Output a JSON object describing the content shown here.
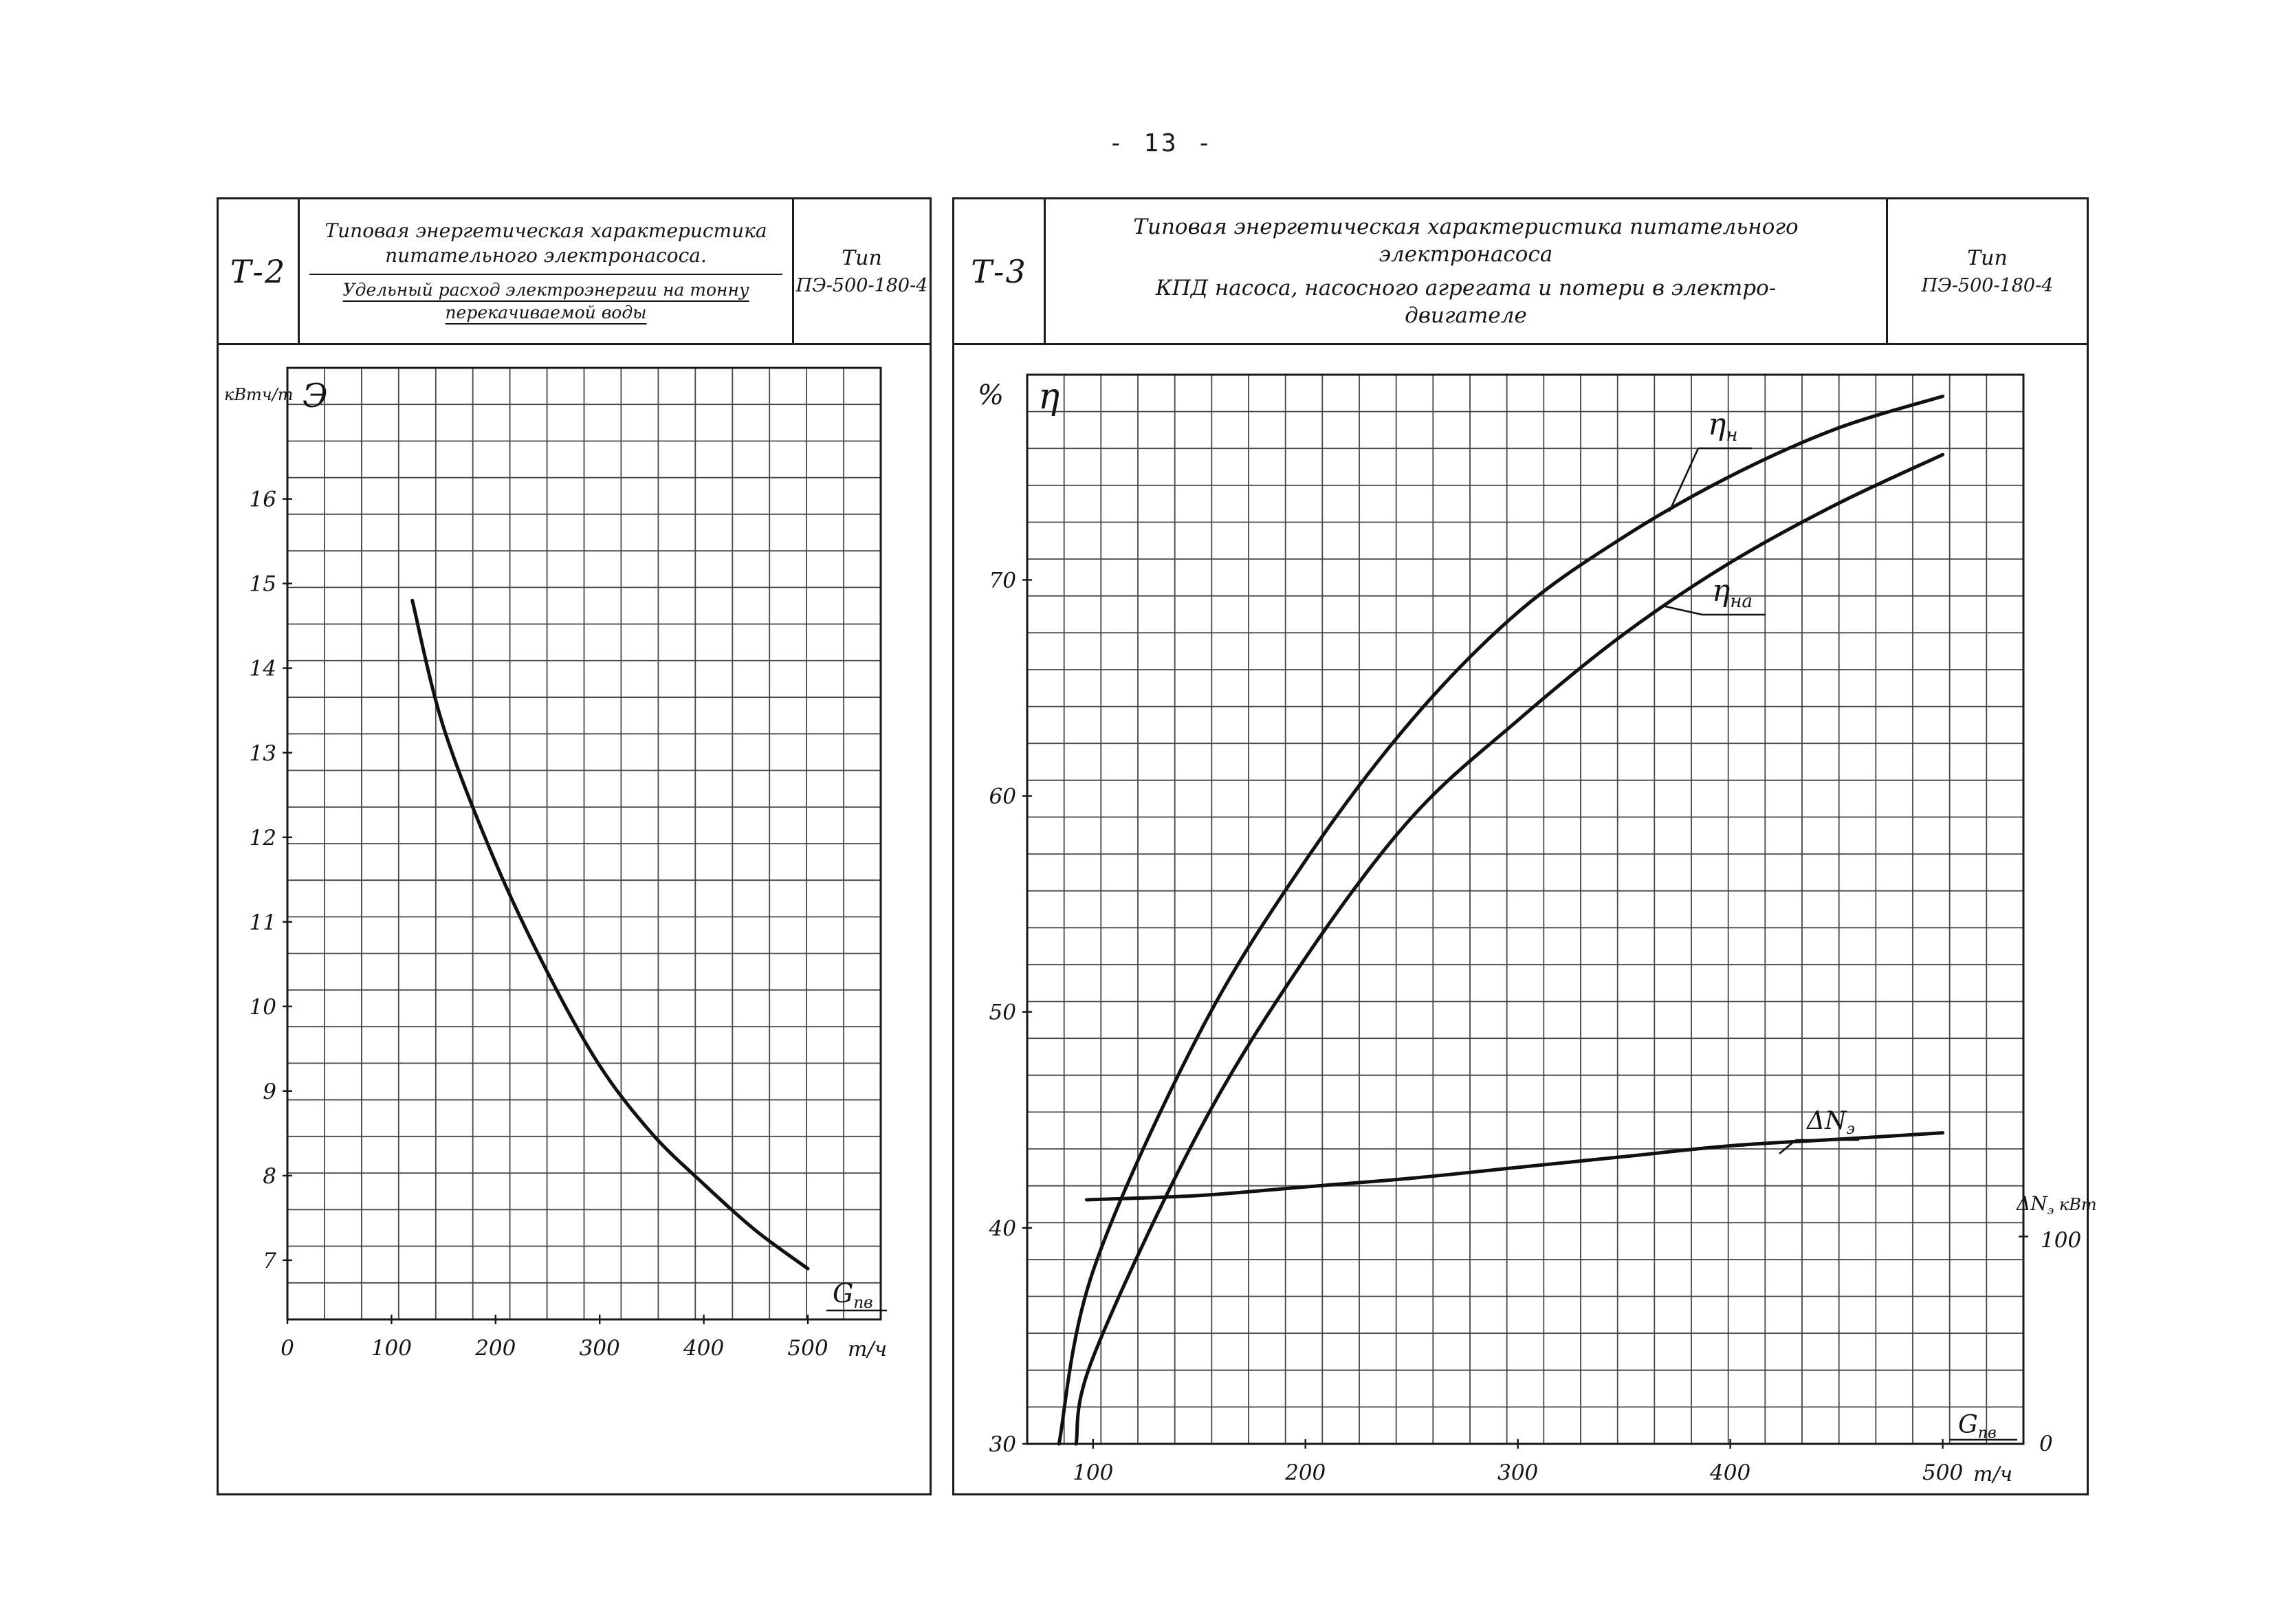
{
  "page": {
    "number_label": "- 13 -"
  },
  "panels": {
    "t2": {
      "code": "Т-2",
      "title_line1": "Типовая энергетическая характеристика",
      "title_line2": "питательного электронасоса.",
      "subtitle_line1": "Удельный расход электроэнергии на тонну",
      "subtitle_line2": "перекачиваемой воды",
      "type_label": "Тип",
      "type_value": "ПЭ-500-180-4"
    },
    "t3": {
      "code": "Т-3",
      "title_line1": "Типовая энергетическая характеристика питательного",
      "title_line2": "электронасоса",
      "subtitle_line1": "КПД насоса, насосного агрегата и потери в электро-",
      "subtitle_line2": "двигателе",
      "type_label": "Тип",
      "type_value": "ПЭ-500-180-4"
    }
  },
  "chart_data": [
    {
      "id": "t2",
      "type": "line",
      "title": "Типовая энергетическая характеристика питательного электронасоса. Удельный расход электроэнергии на тонну перекачиваемой воды",
      "ylabel": "Э, кВт·ч/т",
      "ylabel_unit": "кВтч/т",
      "y_symbol": "Э",
      "xlabel": "Gпв, т/ч",
      "xlabel_base": "G",
      "xlabel_sub": "пв",
      "xlabel_unit": "т/ч",
      "x_ticks": [
        0,
        100,
        200,
        300,
        400,
        500
      ],
      "y_ticks": [
        16,
        15,
        14,
        13,
        12,
        11,
        10,
        9,
        8,
        7
      ],
      "xlim": [
        0,
        570
      ],
      "ylim": [
        6.3,
        17.55
      ],
      "grid": true,
      "series": [
        {
          "name_base": "Э",
          "name_sub": "",
          "units": "кВт·ч/т",
          "x": [
            120,
            150,
            200,
            250,
            300,
            350,
            400,
            450,
            500
          ],
          "y": [
            14.8,
            13.3,
            11.7,
            10.4,
            9.3,
            8.5,
            7.9,
            7.35,
            6.9
          ]
        }
      ]
    },
    {
      "id": "t3",
      "type": "line",
      "title": "Типовая энергетическая характеристика питательного электронасоса. КПД насоса, насосного агрегата и потери в электродвигателе",
      "ylabel": "η, %",
      "ylabel_unit": "%",
      "y_symbol": "η",
      "xlabel": "Gпв, т/ч",
      "xlabel_base": "G",
      "xlabel_sub": "пв",
      "xlabel_unit": "т/ч",
      "x_ticks": [
        100,
        200,
        300,
        400,
        500
      ],
      "y_ticks": [
        70,
        60,
        50,
        40,
        30
      ],
      "xlim": [
        69,
        538
      ],
      "ylim": [
        30,
        79.5
      ],
      "grid": true,
      "right_axis": {
        "label_base": "ΔN",
        "label_sub": "э",
        "label_unit": "кВт",
        "tick_100": "100",
        "tick_0": "0",
        "kw100_at_percent": 39.6
      },
      "series": [
        {
          "name_base": "η",
          "name_sub": "н",
          "units": "%",
          "x": [
            84,
            100,
            150,
            200,
            250,
            300,
            350,
            400,
            450,
            500
          ],
          "y": [
            30,
            38,
            49,
            57,
            63.5,
            68.5,
            72,
            74.8,
            77,
            78.5
          ]
        },
        {
          "name_base": "η",
          "name_sub": "на",
          "units": "%",
          "x": [
            92,
            100,
            150,
            200,
            250,
            300,
            350,
            400,
            450,
            500
          ],
          "y": [
            30,
            34,
            44.5,
            52.5,
            59,
            63.5,
            67.5,
            70.8,
            73.5,
            75.8
          ]
        },
        {
          "name_base": "ΔN",
          "name_sub": "э",
          "units": "кВт (правая шкала)",
          "note": "линия нанесена по левой шкале %; правая шкала: 0 кВт при 30%, 100 кВт при ≈39.6%",
          "x": [
            97,
            150,
            200,
            250,
            300,
            350,
            400,
            450,
            500
          ],
          "y": [
            41.3,
            41.5,
            41.9,
            42.3,
            42.8,
            43.3,
            43.8,
            44.1,
            44.4
          ],
          "values_kw": [
            118,
            120,
            124,
            128,
            133,
            139,
            144,
            147,
            150
          ]
        }
      ]
    }
  ]
}
